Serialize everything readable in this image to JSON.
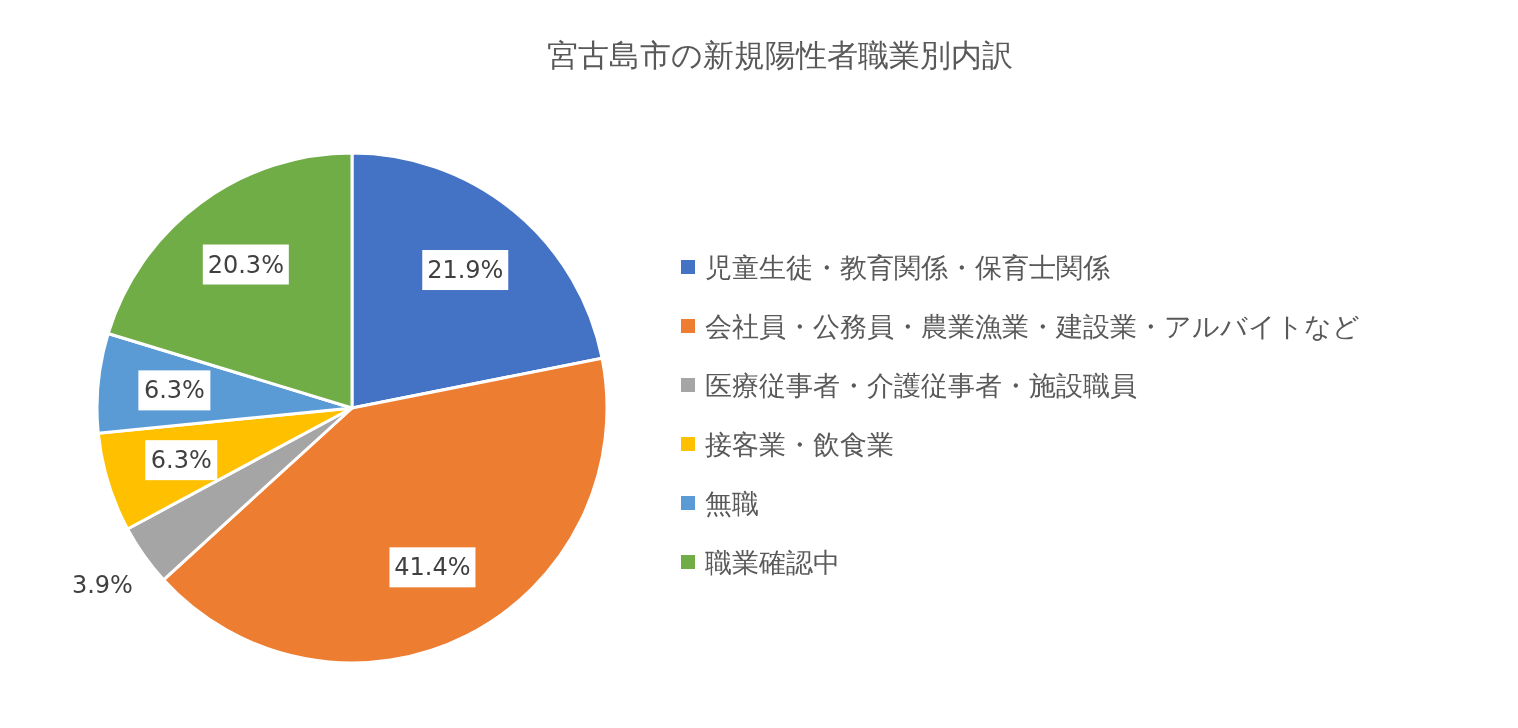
{
  "chart_data": {
    "type": "pie",
    "title": "宮古島市の新規陽性者職業別内訳",
    "categories": [
      "児童生徒・教育関係・保育士関係",
      "会社員・公務員・農業漁業・建設業・アルバイトなど",
      "医療従事者・介護従事者・施設職員",
      "接客業・飲食業",
      "無職",
      "職業確認中"
    ],
    "values": [
      21.9,
      41.4,
      3.9,
      6.3,
      6.3,
      20.3
    ],
    "colors": [
      "#4472c4",
      "#ed7d31",
      "#a5a5a5",
      "#ffc000",
      "#5b9bd5",
      "#70ad47"
    ],
    "value_labels": [
      "21.9%",
      "41.4%",
      "3.9%",
      "6.3%",
      "6.3%",
      "20.3%"
    ],
    "legend": "right"
  }
}
